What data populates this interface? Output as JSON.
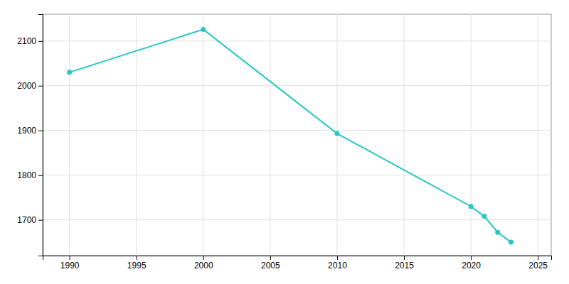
{
  "chart_data": {
    "type": "line",
    "x": [
      1990,
      2000,
      2010,
      2020,
      2021,
      2022,
      2023
    ],
    "series": [
      {
        "color": "#26c6c6",
        "marker": "circle",
        "values": [
          2030,
          2126,
          1893,
          1730,
          1708,
          1672,
          1650
        ]
      }
    ],
    "xlim": [
      1988,
      2026
    ],
    "ylim": [
      1620,
      2160
    ],
    "xticks": [
      1990,
      1995,
      2000,
      2005,
      2010,
      2015,
      2020,
      2025
    ],
    "yticks": [
      1700,
      1800,
      1900,
      2000,
      2100
    ],
    "grid": true
  }
}
